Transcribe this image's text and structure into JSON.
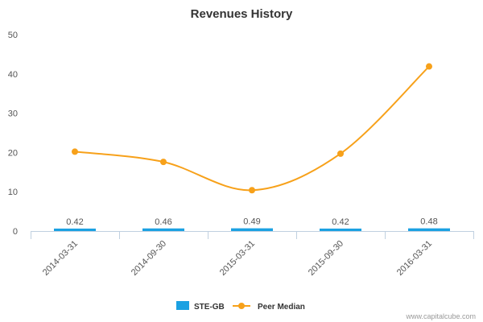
{
  "chart_data": {
    "type": "bar",
    "title": "Revenues History",
    "categories": [
      "2014-03-31",
      "2014-09-30",
      "2015-03-31",
      "2015-09-30",
      "2016-03-31"
    ],
    "ylim": [
      0,
      50
    ],
    "yticks": [
      0,
      10,
      20,
      30,
      40,
      50
    ],
    "grid": false,
    "legend_position": "bottom-center",
    "series": [
      {
        "name": "STE-GB",
        "type": "bar",
        "color": "#1ba1e2",
        "values": [
          0.42,
          0.46,
          0.49,
          0.42,
          0.48
        ],
        "labels": [
          "0.42",
          "0.46",
          "0.49",
          "0.42",
          "0.48"
        ]
      },
      {
        "name": "Peer Median",
        "type": "line",
        "color": "#f7a11a",
        "values": [
          20.2,
          17.6,
          10.4,
          19.7,
          41.9
        ]
      }
    ]
  },
  "credit": "www.capitalcube.com"
}
